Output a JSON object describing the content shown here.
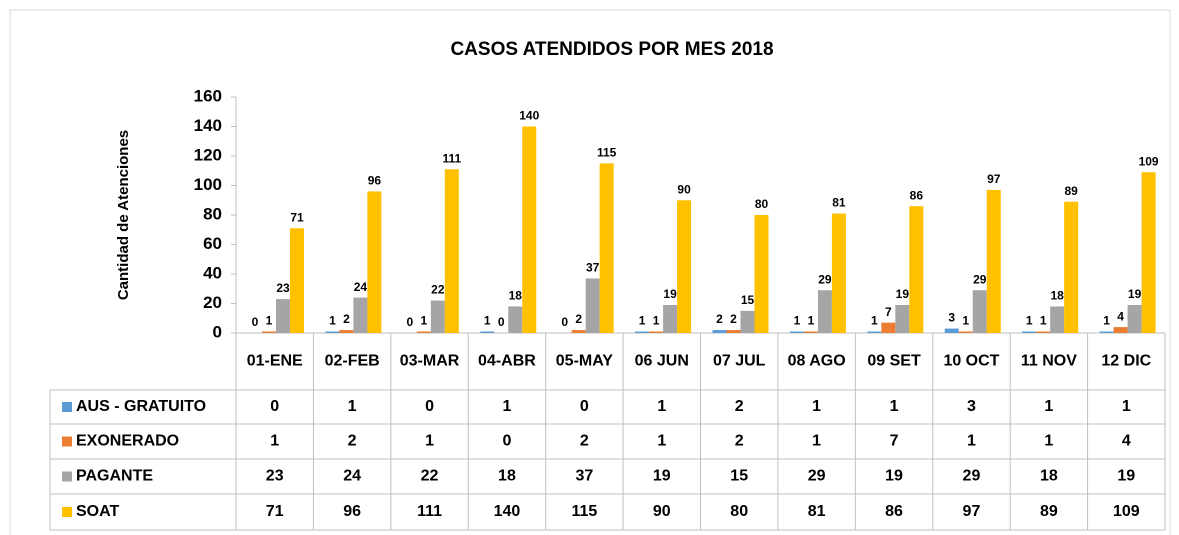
{
  "chart_data": {
    "type": "bar",
    "title": "CASOS ATENDIDOS POR MES 2018",
    "y_label": "Cantidad de Atenciones",
    "categories": [
      "01-ENE",
      "02-FEB",
      "03-MAR",
      "04-ABR",
      "05-MAY",
      "06 JUN",
      "07 JUL",
      "08 AGO",
      "09 SET",
      "10 OCT",
      "11 NOV",
      "12 DIC"
    ],
    "series": [
      {
        "name": "AUS - GRATUITO",
        "color": "#5b9bd5",
        "values": [
          0,
          1,
          0,
          1,
          0,
          1,
          2,
          1,
          1,
          3,
          1,
          1
        ]
      },
      {
        "name": "EXONERADO",
        "color": "#ed7d31",
        "values": [
          1,
          2,
          1,
          0,
          2,
          1,
          2,
          1,
          7,
          1,
          1,
          4
        ]
      },
      {
        "name": "PAGANTE",
        "color": "#a5a5a5",
        "values": [
          23,
          24,
          22,
          18,
          37,
          19,
          15,
          29,
          19,
          29,
          18,
          19
        ]
      },
      {
        "name": "SOAT",
        "color": "#ffc000",
        "values": [
          71,
          96,
          111,
          140,
          115,
          90,
          80,
          81,
          86,
          97,
          89,
          109
        ]
      }
    ],
    "ylim": [
      0,
      160
    ],
    "yticks": [
      0,
      20,
      40,
      60,
      80,
      100,
      120,
      140,
      160
    ],
    "grid": false
  }
}
